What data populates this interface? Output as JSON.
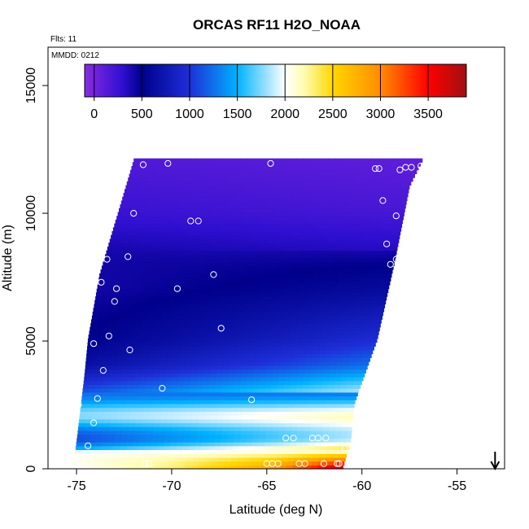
{
  "chart_data": {
    "type": "heatmap",
    "title": "ORCAS RF11 H2O_NOAA",
    "annotations": {
      "flights": "Flts: 11",
      "mmdd": "MMDD: 0212"
    },
    "xlabel": "Latitude (deg N)",
    "ylabel": "Altitude (m)",
    "xlim": [
      -76.5,
      -52.5
    ],
    "ylim": [
      0,
      16500
    ],
    "xticks": [
      -75,
      -70,
      -65,
      -60,
      -55
    ],
    "xtick_labels": [
      "-75",
      "-70",
      "-65",
      "-60",
      "-55"
    ],
    "yticks": [
      0,
      5000,
      10000,
      15000
    ],
    "ytick_labels": [
      "0",
      "5000",
      "10000",
      "15000"
    ],
    "colorbar": {
      "min": -100,
      "max": 3900,
      "ticks": [
        0,
        500,
        1000,
        1500,
        2000,
        2500,
        3000,
        3500
      ],
      "tick_labels": [
        "0",
        "500",
        "1000",
        "1500",
        "2000",
        "2500",
        "3000",
        "3500"
      ],
      "stops": [
        [
          -100,
          "#8a2be2"
        ],
        [
          300,
          "#2e0fd0"
        ],
        [
          500,
          "#00008b"
        ],
        [
          1000,
          "#1e2fd8"
        ],
        [
          1500,
          "#00b2ff"
        ],
        [
          2000,
          "#ffffff"
        ],
        [
          2200,
          "#fffcb0"
        ],
        [
          2500,
          "#ffd700"
        ],
        [
          3000,
          "#ff8c00"
        ],
        [
          3500,
          "#ff0000"
        ],
        [
          3900,
          "#a01010"
        ]
      ]
    },
    "grid_domain": {
      "lat_step": 0.33,
      "alt_step": 150,
      "left_edge_lat": {
        "alt_m": [
          0,
          1000,
          3500,
          5000,
          7500,
          10000,
          12000
        ],
        "lat": [
          -75.2,
          -75.0,
          -74.6,
          -74.4,
          -73.8,
          -72.8,
          -72.0
        ]
      },
      "right_edge_lat": {
        "alt_m": [
          0,
          1000,
          2500,
          5000,
          8000,
          11000,
          12200
        ],
        "lat": [
          -61.0,
          -60.6,
          -60.4,
          -59.2,
          -58.3,
          -57.5,
          -56.7
        ]
      }
    },
    "field_profile": {
      "alt_m": [
        0,
        300,
        700,
        1000,
        1500,
        2000,
        2500,
        3000,
        4000,
        5000,
        6000,
        7000,
        8000,
        9000,
        10000,
        12000
      ],
      "mean_value": [
        2200,
        2100,
        1900,
        1650,
        1700,
        1800,
        1600,
        1400,
        900,
        700,
        600,
        500,
        450,
        350,
        250,
        150
      ]
    },
    "surface_gradient": {
      "lat": [
        -75,
        -70,
        -65,
        -62,
        -61
      ],
      "value_at_0m": [
        2000,
        2300,
        2800,
        3500,
        3700
      ]
    },
    "flight_track_points": [
      {
        "lat": -71.5,
        "alt": 11900
      },
      {
        "lat": -70.2,
        "alt": 11950
      },
      {
        "lat": -64.8,
        "alt": 11950
      },
      {
        "lat": -59.3,
        "alt": 11750
      },
      {
        "lat": -59.1,
        "alt": 11750
      },
      {
        "lat": -58.0,
        "alt": 11700
      },
      {
        "lat": -57.7,
        "alt": 11800
      },
      {
        "lat": -57.4,
        "alt": 11800
      },
      {
        "lat": -56.9,
        "alt": 11850
      },
      {
        "lat": -58.9,
        "alt": 10500
      },
      {
        "lat": -58.2,
        "alt": 9900
      },
      {
        "lat": -72.0,
        "alt": 10000
      },
      {
        "lat": -69.0,
        "alt": 9700
      },
      {
        "lat": -68.6,
        "alt": 9700
      },
      {
        "lat": -58.7,
        "alt": 8800
      },
      {
        "lat": -73.4,
        "alt": 8200
      },
      {
        "lat": -72.3,
        "alt": 8300
      },
      {
        "lat": -58.5,
        "alt": 8000
      },
      {
        "lat": -58.2,
        "alt": 8200
      },
      {
        "lat": -67.8,
        "alt": 7600
      },
      {
        "lat": -73.7,
        "alt": 7300
      },
      {
        "lat": -72.9,
        "alt": 7050
      },
      {
        "lat": -69.7,
        "alt": 7050
      },
      {
        "lat": -73.0,
        "alt": 6550
      },
      {
        "lat": -67.4,
        "alt": 5500
      },
      {
        "lat": -73.3,
        "alt": 5200
      },
      {
        "lat": -74.1,
        "alt": 4900
      },
      {
        "lat": -72.2,
        "alt": 4650
      },
      {
        "lat": -73.6,
        "alt": 3850
      },
      {
        "lat": -70.5,
        "alt": 3150
      },
      {
        "lat": -73.9,
        "alt": 2750
      },
      {
        "lat": -65.8,
        "alt": 2700
      },
      {
        "lat": -74.9,
        "alt": 2500
      },
      {
        "lat": -74.1,
        "alt": 1800
      },
      {
        "lat": -64.0,
        "alt": 1200
      },
      {
        "lat": -63.6,
        "alt": 1200
      },
      {
        "lat": -62.6,
        "alt": 1200
      },
      {
        "lat": -62.3,
        "alt": 1200
      },
      {
        "lat": -61.9,
        "alt": 1200
      },
      {
        "lat": -74.4,
        "alt": 900
      },
      {
        "lat": -60.9,
        "alt": 800
      },
      {
        "lat": -71.4,
        "alt": 200
      },
      {
        "lat": -71.2,
        "alt": 200
      },
      {
        "lat": -65.0,
        "alt": 200
      },
      {
        "lat": -64.7,
        "alt": 200
      },
      {
        "lat": -64.4,
        "alt": 200
      },
      {
        "lat": -63.3,
        "alt": 200
      },
      {
        "lat": -63.0,
        "alt": 200
      },
      {
        "lat": -62.0,
        "alt": 200
      },
      {
        "lat": -61.3,
        "alt": 200
      },
      {
        "lat": -61.2,
        "alt": 200
      }
    ],
    "arrow_marker": {
      "lat": -53.0,
      "direction": "down"
    }
  }
}
